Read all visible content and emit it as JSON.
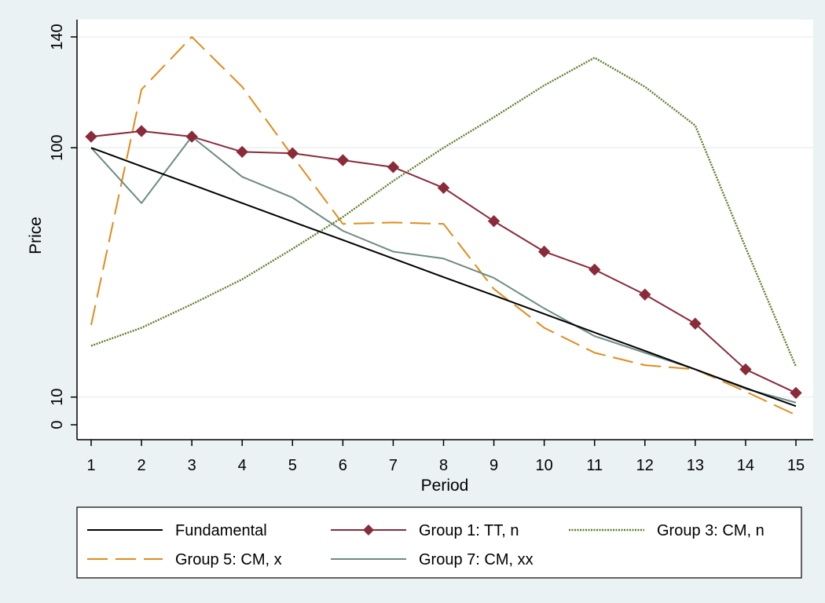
{
  "chart_data": {
    "type": "line",
    "xlabel": "Period",
    "ylabel": "Price",
    "x": [
      1,
      2,
      3,
      4,
      5,
      6,
      7,
      8,
      9,
      10,
      11,
      12,
      13,
      14,
      15
    ],
    "xlim": [
      1,
      15
    ],
    "ylim": [
      0,
      140
    ],
    "yticks": [
      0,
      10,
      100,
      140
    ],
    "grid": true,
    "legend_position": "bottom",
    "series": [
      {
        "name": "Fundamental",
        "color": "#000000",
        "dash": "solid",
        "marker": "none",
        "values": [
          100,
          93.3,
          86.7,
          80,
          73.3,
          66.7,
          60,
          53.3,
          46.7,
          40,
          33.3,
          26.7,
          20,
          13.3,
          6.7
        ]
      },
      {
        "name": "Group 1: TT, n",
        "color": "#8a2b3a",
        "dash": "solid",
        "marker": "diamond",
        "values": [
          104,
          106,
          104,
          98.5,
          98,
          95.5,
          93,
          85.5,
          73.5,
          62.5,
          56,
          47,
          36.5,
          20,
          11.5
        ]
      },
      {
        "name": "Group 3: CM, n",
        "color": "#5e7d2a",
        "dash": "dotted",
        "marker": "none",
        "values": [
          28.5,
          35,
          43.5,
          52.5,
          63.5,
          75,
          88,
          100,
          111,
          122.5,
          132.5,
          122,
          108,
          64,
          21
        ]
      },
      {
        "name": "Group 5: CM, x",
        "color": "#e08c1a",
        "dash": "dashed",
        "marker": "none",
        "values": [
          36,
          121,
          140,
          122,
          97,
          72.5,
          73,
          72.5,
          49,
          35,
          26,
          21.5,
          20,
          12,
          3.5
        ]
      },
      {
        "name": "Group 7: CM, xx",
        "color": "#6e8b84",
        "dash": "solid",
        "marker": "none",
        "values": [
          100,
          80,
          104,
          89.5,
          82,
          70,
          62.5,
          60,
          53,
          42,
          32,
          26,
          20,
          13,
          8
        ]
      }
    ]
  }
}
